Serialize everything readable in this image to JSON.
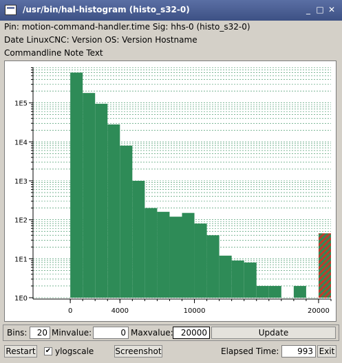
{
  "window": {
    "title": "/usr/bin/hal-histogram (histo_s32-0)",
    "minimize": "_",
    "maximize": "□",
    "close": "✕"
  },
  "info": {
    "line1": "Pin: motion-command-handler.time Sig: hhs-0 (histo_s32-0)",
    "line2": "Date  LinuxCNC: Version  OS: Version Hostname",
    "line3": "Commandline Note Text"
  },
  "controls": {
    "bins_label": "Bins:",
    "bins_value": "20",
    "minvalue_label": "Minvalue:",
    "minvalue_value": "0",
    "maxvalue_label": "Maxvalue:",
    "maxvalue_value": "20000",
    "update_label": "Update",
    "restart_label": "Restart",
    "ylogscale_label": "ylogscale",
    "ylogscale_checked": true,
    "screenshot_label": "Screenshot",
    "elapsed_label": "Elapsed Time:",
    "elapsed_value": "993",
    "exit_label": "Exit"
  },
  "colors": {
    "bar": "#2e8b57",
    "overflow_a": "#2e8b57",
    "overflow_b": "#c0392b",
    "grid": "#2e8b57"
  },
  "chart_data": {
    "type": "bar",
    "yscale": "log",
    "ylim": [
      1,
      1000000
    ],
    "xlim": [
      -3000,
      21000
    ],
    "x_ticks": [
      0,
      4000,
      10000,
      20000
    ],
    "y_ticks": [
      "1E0",
      "1E1",
      "1E2",
      "1E3",
      "1E4",
      "1E5"
    ],
    "bin_width": 1000,
    "bins": [
      {
        "start": 0,
        "count": 600000
      },
      {
        "start": 1000,
        "count": 180000
      },
      {
        "start": 2000,
        "count": 95000
      },
      {
        "start": 3000,
        "count": 28000
      },
      {
        "start": 4000,
        "count": 8000
      },
      {
        "start": 5000,
        "count": 1000
      },
      {
        "start": 6000,
        "count": 200
      },
      {
        "start": 7000,
        "count": 160
      },
      {
        "start": 8000,
        "count": 120
      },
      {
        "start": 9000,
        "count": 150
      },
      {
        "start": 10000,
        "count": 80
      },
      {
        "start": 11000,
        "count": 40
      },
      {
        "start": 12000,
        "count": 12
      },
      {
        "start": 13000,
        "count": 9
      },
      {
        "start": 14000,
        "count": 8
      },
      {
        "start": 15000,
        "count": 2
      },
      {
        "start": 16000,
        "count": 2
      },
      {
        "start": 17000,
        "count": 1
      },
      {
        "start": 18000,
        "count": 2
      }
    ],
    "overflow": {
      "start": 20000,
      "count": 45
    }
  }
}
